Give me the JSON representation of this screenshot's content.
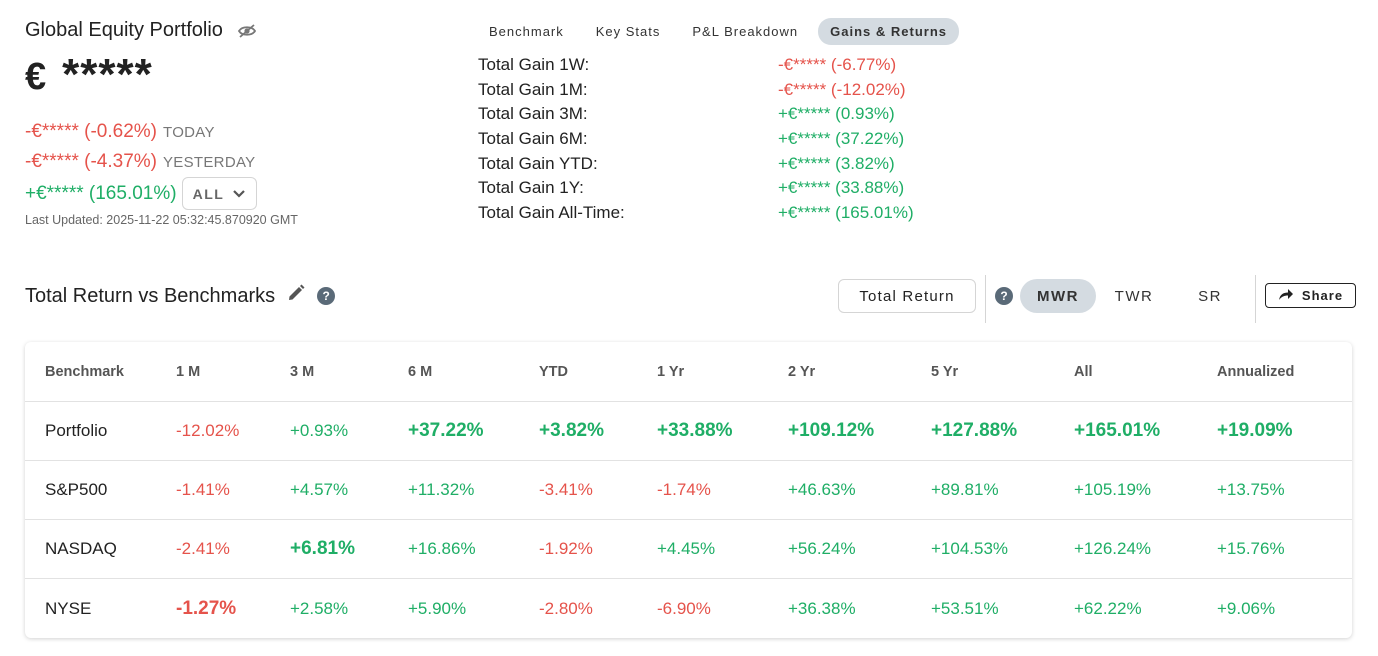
{
  "portfolio": {
    "title": "Global Equity Portfolio",
    "currency_symbol": "€",
    "balance_masked": "*****",
    "changes": [
      {
        "value": "-€***** (-0.62%)",
        "label": "TODAY",
        "sign": "neg"
      },
      {
        "value": "-€***** (-4.37%)",
        "label": "YESTERDAY",
        "sign": "neg"
      },
      {
        "value": "+€***** (165.01%)",
        "label": "ALL",
        "sign": "pos"
      }
    ],
    "last_updated": "Last Updated: 2025-11-22 05:32:45.870920 GMT"
  },
  "tabs": [
    {
      "label": "Benchmark",
      "active": false
    },
    {
      "label": "Key Stats",
      "active": false
    },
    {
      "label": "P&L Breakdown",
      "active": false
    },
    {
      "label": "Gains & Returns",
      "active": true
    }
  ],
  "gains": [
    {
      "label": "Total Gain 1W:",
      "value": "-€***** (-6.77%)",
      "sign": "neg"
    },
    {
      "label": "Total Gain 1M:",
      "value": "-€***** (-12.02%)",
      "sign": "neg"
    },
    {
      "label": "Total Gain 3M:",
      "value": "+€***** (0.93%)",
      "sign": "pos"
    },
    {
      "label": "Total Gain 6M:",
      "value": "+€***** (37.22%)",
      "sign": "pos"
    },
    {
      "label": "Total Gain YTD:",
      "value": "+€***** (3.82%)",
      "sign": "pos"
    },
    {
      "label": "Total Gain 1Y:",
      "value": "+€***** (33.88%)",
      "sign": "pos"
    },
    {
      "label": "Total Gain All-Time:",
      "value": "+€***** (165.01%)",
      "sign": "pos"
    }
  ],
  "section": {
    "title": "Total Return vs Benchmarks",
    "total_return_label": "Total Return",
    "methods": [
      {
        "label": "MWR",
        "active": true
      },
      {
        "label": "TWR",
        "active": false
      },
      {
        "label": "SR",
        "active": false
      }
    ],
    "share_label": "Share"
  },
  "table": {
    "headers": [
      "Benchmark",
      "1 M",
      "3 M",
      "6 M",
      "YTD",
      "1 Yr",
      "2 Yr",
      "5 Yr",
      "All",
      "Annualized"
    ],
    "rows": [
      {
        "name": "Portfolio",
        "cells": [
          {
            "v": "-12.02%",
            "s": "neg",
            "b": false
          },
          {
            "v": "+0.93%",
            "s": "pos",
            "b": false
          },
          {
            "v": "+37.22%",
            "s": "pos",
            "b": true
          },
          {
            "v": "+3.82%",
            "s": "pos",
            "b": true
          },
          {
            "v": "+33.88%",
            "s": "pos",
            "b": true
          },
          {
            "v": "+109.12%",
            "s": "pos",
            "b": true
          },
          {
            "v": "+127.88%",
            "s": "pos",
            "b": true
          },
          {
            "v": "+165.01%",
            "s": "pos",
            "b": true
          },
          {
            "v": "+19.09%",
            "s": "pos",
            "b": true
          }
        ]
      },
      {
        "name": "S&P500",
        "cells": [
          {
            "v": "-1.41%",
            "s": "neg",
            "b": false
          },
          {
            "v": "+4.57%",
            "s": "pos",
            "b": false
          },
          {
            "v": "+11.32%",
            "s": "pos",
            "b": false
          },
          {
            "v": "-3.41%",
            "s": "neg",
            "b": false
          },
          {
            "v": "-1.74%",
            "s": "neg",
            "b": false
          },
          {
            "v": "+46.63%",
            "s": "pos",
            "b": false
          },
          {
            "v": "+89.81%",
            "s": "pos",
            "b": false
          },
          {
            "v": "+105.19%",
            "s": "pos",
            "b": false
          },
          {
            "v": "+13.75%",
            "s": "pos",
            "b": false
          }
        ]
      },
      {
        "name": "NASDAQ",
        "cells": [
          {
            "v": "-2.41%",
            "s": "neg",
            "b": false
          },
          {
            "v": "+6.81%",
            "s": "pos",
            "b": true
          },
          {
            "v": "+16.86%",
            "s": "pos",
            "b": false
          },
          {
            "v": "-1.92%",
            "s": "neg",
            "b": false
          },
          {
            "v": "+4.45%",
            "s": "pos",
            "b": false
          },
          {
            "v": "+56.24%",
            "s": "pos",
            "b": false
          },
          {
            "v": "+104.53%",
            "s": "pos",
            "b": false
          },
          {
            "v": "+126.24%",
            "s": "pos",
            "b": false
          },
          {
            "v": "+15.76%",
            "s": "pos",
            "b": false
          }
        ]
      },
      {
        "name": "NYSE",
        "cells": [
          {
            "v": "-1.27%",
            "s": "neg",
            "b": true
          },
          {
            "v": "+2.58%",
            "s": "pos",
            "b": false
          },
          {
            "v": "+5.90%",
            "s": "pos",
            "b": false
          },
          {
            "v": "-2.80%",
            "s": "neg",
            "b": false
          },
          {
            "v": "-6.90%",
            "s": "neg",
            "b": false
          },
          {
            "v": "+36.38%",
            "s": "pos",
            "b": false
          },
          {
            "v": "+53.51%",
            "s": "pos",
            "b": false
          },
          {
            "v": "+62.22%",
            "s": "pos",
            "b": false
          },
          {
            "v": "+9.06%",
            "s": "pos",
            "b": false
          }
        ]
      }
    ]
  },
  "colors": {
    "negative": "#e5534b",
    "positive": "#1fae66",
    "active_pill": "#d4dbe1"
  },
  "icons": {
    "hide": "eye-off-icon",
    "edit": "pencil-icon",
    "help": "question-icon",
    "dropdown": "chevron-down-icon",
    "share": "share-arrow-icon"
  }
}
